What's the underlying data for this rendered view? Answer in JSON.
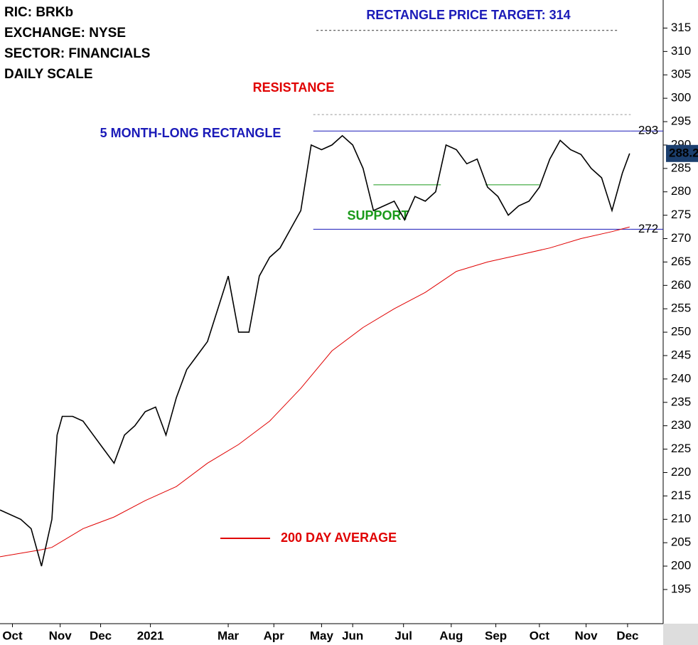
{
  "chart_data": {
    "type": "line",
    "header": [
      "RIC: BRKb",
      "EXCHANGE: NYSE",
      "SECTOR: FINANCIALS",
      "DAILY SCALE"
    ],
    "annotations": [
      "RECTANGLE PRICE TARGET: 314",
      "RESISTANCE",
      "5 MONTH-LONG RECTANGLE",
      "SUPPORT"
    ],
    "xlim": [
      0,
      64
    ],
    "xticks": [
      {
        "value": 1.2,
        "label": "Oct"
      },
      {
        "value": 5.8,
        "label": "Nov"
      },
      {
        "value": 9.7,
        "label": "Dec"
      },
      {
        "value": 14.5,
        "label": "2021"
      },
      {
        "value": 22,
        "label": "Mar"
      },
      {
        "value": 26.4,
        "label": "Apr"
      },
      {
        "value": 31,
        "label": "May"
      },
      {
        "value": 34,
        "label": "Jun"
      },
      {
        "value": 38.9,
        "label": "Jul"
      },
      {
        "value": 43.5,
        "label": "Aug"
      },
      {
        "value": 47.8,
        "label": "Sep"
      },
      {
        "value": 52,
        "label": "Oct"
      },
      {
        "value": 56.5,
        "label": "Nov"
      },
      {
        "value": 60.5,
        "label": "Dec"
      }
    ],
    "ylim": [
      188,
      321
    ],
    "yticks": [
      195,
      200,
      205,
      210,
      215,
      220,
      225,
      230,
      235,
      240,
      245,
      250,
      255,
      260,
      265,
      270,
      275,
      280,
      285,
      290,
      295,
      300,
      305,
      310,
      315
    ],
    "price": {
      "color": "#000000",
      "x": [
        0,
        2,
        3,
        4,
        5,
        5.5,
        6,
        7,
        8,
        9,
        10,
        11,
        12,
        13,
        14,
        15,
        16,
        17,
        18,
        19,
        20,
        21,
        22,
        23,
        24,
        25,
        26,
        27,
        28,
        29,
        30,
        31,
        32,
        33,
        34,
        35,
        36,
        37,
        38,
        39,
        40,
        41,
        42,
        43,
        44,
        45,
        46,
        47,
        48,
        49,
        50,
        51,
        52,
        53,
        54,
        55,
        56,
        57,
        58,
        59,
        60,
        60.7
      ],
      "values": [
        212,
        210,
        208,
        200,
        210,
        228,
        232,
        232,
        231,
        228,
        225,
        222,
        228,
        230,
        233,
        234,
        228,
        236,
        242,
        245,
        248,
        255,
        262,
        250,
        250,
        262,
        266,
        268,
        272,
        276,
        290,
        289,
        290,
        292,
        290,
        285,
        276,
        277,
        278,
        274,
        279,
        278,
        280,
        290,
        289,
        286,
        287,
        281,
        279,
        275,
        277,
        278,
        281,
        287,
        291,
        289,
        288,
        285,
        283,
        276,
        284,
        288.2
      ]
    },
    "average": {
      "label": "200 DAY  AVERAGE",
      "color": "#e00000",
      "x": [
        0,
        4,
        5,
        8,
        11,
        14,
        17,
        20,
        23,
        26,
        29,
        32,
        35,
        38,
        41,
        44,
        47,
        50,
        53,
        56,
        59,
        60.7
      ],
      "values": [
        202,
        203.5,
        204,
        208,
        210.5,
        214,
        217,
        222,
        226,
        231,
        238,
        246,
        251,
        255,
        258.5,
        263,
        265,
        266.5,
        268,
        270,
        271.5,
        272.5
      ]
    },
    "levels": [
      {
        "value": 293,
        "color": "#1a1ab8",
        "style": "solid",
        "x": [
          30.2,
          60.8
        ],
        "printed": true
      },
      {
        "value": 272,
        "color": "#1a1ab8",
        "style": "solid",
        "x": [
          30.2,
          60.8
        ],
        "printed": true
      },
      {
        "value": 314.5,
        "color": "#333333",
        "style": "dotted",
        "x": [
          30.5,
          59.5
        ],
        "printed": false
      },
      {
        "value": 296.5,
        "color": "#999999",
        "style": "dotted",
        "x": [
          30.2,
          60.8
        ],
        "printed": false
      },
      {
        "value": 281.5,
        "color": "#1a9a1a",
        "style": "solid",
        "x": [
          36,
          42.5
        ],
        "printed": false
      },
      {
        "value": 281.5,
        "color": "#1a9a1a",
        "style": "solid",
        "x": [
          46.8,
          52
        ],
        "printed": false
      }
    ]
  }
}
